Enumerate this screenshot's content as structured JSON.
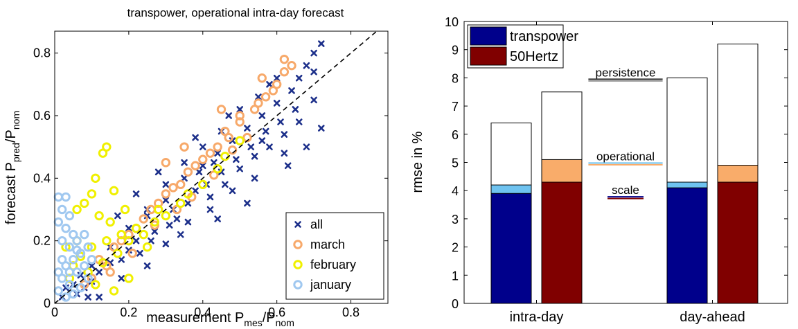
{
  "chart_data": [
    {
      "type": "scatter",
      "title": "transpower, operational intra-day forecast",
      "xlabel": {
        "main": "measurement P",
        "sub1": "mes",
        "sep": "/P",
        "sub2": "nom"
      },
      "ylabel": {
        "main": "forecast P",
        "sub1": "pred",
        "sep": "/P",
        "sub2": "nom"
      },
      "xlim": [
        0,
        0.9
      ],
      "ylim": [
        0,
        0.87
      ],
      "xticks": [
        0,
        0.2,
        0.4,
        0.6,
        0.8
      ],
      "yticks": [
        0,
        0.2,
        0.4,
        0.6,
        0.8
      ],
      "xtick_labels": [
        "0",
        "0.2",
        "0.4",
        "0.6",
        "0.8"
      ],
      "ytick_labels": [
        "0",
        "0.2",
        "0.4",
        "0.6",
        "0.8"
      ],
      "diagonal": [
        [
          0,
          0
        ],
        [
          0.9,
          0.9
        ]
      ],
      "legend_position": "bottom-right",
      "series": [
        {
          "name": "all",
          "marker": "x",
          "color": "#1c2f8a",
          "points": [
            [
              0.02,
              0.02
            ],
            [
              0.05,
              0.06
            ],
            [
              0.08,
              0.05
            ],
            [
              0.1,
              0.12
            ],
            [
              0.12,
              0.1
            ],
            [
              0.15,
              0.18
            ],
            [
              0.18,
              0.14
            ],
            [
              0.2,
              0.24
            ],
            [
              0.22,
              0.2
            ],
            [
              0.25,
              0.28
            ],
            [
              0.27,
              0.23
            ],
            [
              0.3,
              0.33
            ],
            [
              0.32,
              0.3
            ],
            [
              0.33,
              0.27
            ],
            [
              0.35,
              0.4
            ],
            [
              0.36,
              0.32
            ],
            [
              0.38,
              0.36
            ],
            [
              0.4,
              0.44
            ],
            [
              0.41,
              0.38
            ],
            [
              0.42,
              0.34
            ],
            [
              0.44,
              0.48
            ],
            [
              0.45,
              0.42
            ],
            [
              0.46,
              0.38
            ],
            [
              0.48,
              0.52
            ],
            [
              0.49,
              0.46
            ],
            [
              0.5,
              0.43
            ],
            [
              0.52,
              0.56
            ],
            [
              0.53,
              0.5
            ],
            [
              0.54,
              0.47
            ],
            [
              0.56,
              0.6
            ],
            [
              0.57,
              0.55
            ],
            [
              0.58,
              0.5
            ],
            [
              0.6,
              0.64
            ],
            [
              0.61,
              0.58
            ],
            [
              0.62,
              0.54
            ],
            [
              0.64,
              0.68
            ],
            [
              0.65,
              0.62
            ],
            [
              0.66,
              0.72
            ],
            [
              0.68,
              0.76
            ],
            [
              0.7,
              0.8
            ],
            [
              0.72,
              0.83
            ],
            [
              0.7,
              0.74
            ],
            [
              0.6,
              0.72
            ],
            [
              0.55,
              0.66
            ],
            [
              0.5,
              0.62
            ],
            [
              0.45,
              0.55
            ],
            [
              0.4,
              0.5
            ],
            [
              0.35,
              0.45
            ],
            [
              0.3,
              0.38
            ],
            [
              0.25,
              0.3
            ],
            [
              0.2,
              0.17
            ],
            [
              0.15,
              0.13
            ],
            [
              0.1,
              0.07
            ],
            [
              0.06,
              0.03
            ],
            [
              0.12,
              0.02
            ],
            [
              0.25,
              0.12
            ],
            [
              0.3,
              0.19
            ],
            [
              0.36,
              0.26
            ],
            [
              0.42,
              0.3
            ],
            [
              0.48,
              0.36
            ],
            [
              0.54,
              0.4
            ],
            [
              0.63,
              0.44
            ],
            [
              0.68,
              0.5
            ],
            [
              0.72,
              0.56
            ],
            [
              0.7,
              0.65
            ],
            [
              0.58,
              0.7
            ],
            [
              0.47,
              0.6
            ],
            [
              0.38,
              0.53
            ],
            [
              0.28,
              0.42
            ],
            [
              0.22,
              0.35
            ],
            [
              0.17,
              0.28
            ],
            [
              0.18,
              0.08
            ],
            [
              0.23,
              0.16
            ],
            [
              0.34,
              0.22
            ],
            [
              0.44,
              0.27
            ],
            [
              0.52,
              0.32
            ],
            [
              0.62,
              0.48
            ],
            [
              0.66,
              0.58
            ],
            [
              0.56,
              0.52
            ],
            [
              0.43,
              0.45
            ],
            [
              0.39,
              0.42
            ],
            [
              0.31,
              0.25
            ],
            [
              0.26,
              0.2
            ],
            [
              0.07,
              0.09
            ],
            [
              0.03,
              0.05
            ],
            [
              0.09,
              0.02
            ]
          ]
        },
        {
          "name": "march",
          "marker": "o",
          "color": "#f7a96a",
          "points": [
            [
              0.62,
              0.78
            ],
            [
              0.64,
              0.76
            ],
            [
              0.6,
              0.7
            ],
            [
              0.57,
              0.66
            ],
            [
              0.54,
              0.62
            ],
            [
              0.5,
              0.58
            ],
            [
              0.47,
              0.53
            ],
            [
              0.44,
              0.5
            ],
            [
              0.4,
              0.46
            ],
            [
              0.36,
              0.42
            ],
            [
              0.32,
              0.37
            ],
            [
              0.28,
              0.32
            ],
            [
              0.24,
              0.27
            ],
            [
              0.2,
              0.22
            ],
            [
              0.16,
              0.18
            ],
            [
              0.12,
              0.14
            ],
            [
              0.1,
              0.08
            ],
            [
              0.14,
              0.12
            ],
            [
              0.18,
              0.2
            ],
            [
              0.22,
              0.24
            ],
            [
              0.26,
              0.3
            ],
            [
              0.3,
              0.35
            ],
            [
              0.34,
              0.38
            ],
            [
              0.38,
              0.44
            ],
            [
              0.42,
              0.48
            ],
            [
              0.46,
              0.55
            ],
            [
              0.5,
              0.6
            ],
            [
              0.55,
              0.64
            ],
            [
              0.59,
              0.68
            ],
            [
              0.52,
              0.53
            ],
            [
              0.48,
              0.49
            ],
            [
              0.43,
              0.41
            ],
            [
              0.37,
              0.34
            ],
            [
              0.33,
              0.3
            ],
            [
              0.27,
              0.25
            ],
            [
              0.21,
              0.16
            ],
            [
              0.15,
              0.1
            ],
            [
              0.08,
              0.06
            ],
            [
              0.3,
              0.45
            ],
            [
              0.35,
              0.5
            ],
            [
              0.45,
              0.62
            ],
            [
              0.56,
              0.72
            ],
            [
              0.62,
              0.74
            ]
          ]
        },
        {
          "name": "february",
          "marker": "o",
          "color": "#f0f000",
          "points": [
            [
              0.14,
              0.5
            ],
            [
              0.13,
              0.48
            ],
            [
              0.11,
              0.4
            ],
            [
              0.16,
              0.36
            ],
            [
              0.1,
              0.35
            ],
            [
              0.08,
              0.32
            ],
            [
              0.06,
              0.3
            ],
            [
              0.12,
              0.28
            ],
            [
              0.15,
              0.26
            ],
            [
              0.19,
              0.3
            ],
            [
              0.22,
              0.24
            ],
            [
              0.18,
              0.22
            ],
            [
              0.14,
              0.2
            ],
            [
              0.1,
              0.18
            ],
            [
              0.07,
              0.15
            ],
            [
              0.05,
              0.12
            ],
            [
              0.04,
              0.08
            ],
            [
              0.09,
              0.1
            ],
            [
              0.13,
              0.13
            ],
            [
              0.17,
              0.16
            ],
            [
              0.2,
              0.2
            ],
            [
              0.24,
              0.22
            ],
            [
              0.27,
              0.26
            ],
            [
              0.3,
              0.28
            ],
            [
              0.34,
              0.32
            ],
            [
              0.36,
              0.35
            ],
            [
              0.4,
              0.38
            ],
            [
              0.44,
              0.43
            ],
            [
              0.46,
              0.47
            ],
            [
              0.5,
              0.52
            ],
            [
              0.16,
              0.04
            ],
            [
              0.2,
              0.08
            ],
            [
              0.11,
              0.06
            ],
            [
              0.06,
              0.2
            ],
            [
              0.03,
              0.18
            ],
            [
              0.25,
              0.18
            ],
            [
              0.28,
              0.3
            ]
          ]
        },
        {
          "name": "january",
          "marker": "o",
          "color": "#a0c8f0",
          "points": [
            [
              0.01,
              0.34
            ],
            [
              0.03,
              0.34
            ],
            [
              0.02,
              0.3
            ],
            [
              0.04,
              0.28
            ],
            [
              0.01,
              0.26
            ],
            [
              0.03,
              0.24
            ],
            [
              0.05,
              0.22
            ],
            [
              0.02,
              0.2
            ],
            [
              0.04,
              0.18
            ],
            [
              0.06,
              0.2
            ],
            [
              0.08,
              0.22
            ],
            [
              0.07,
              0.16
            ],
            [
              0.05,
              0.14
            ],
            [
              0.03,
              0.12
            ],
            [
              0.01,
              0.1
            ],
            [
              0.02,
              0.08
            ],
            [
              0.04,
              0.06
            ],
            [
              0.06,
              0.1
            ],
            [
              0.08,
              0.12
            ],
            [
              0.1,
              0.14
            ],
            [
              0.09,
              0.08
            ],
            [
              0.07,
              0.05
            ],
            [
              0.05,
              0.03
            ],
            [
              0.03,
              0.02
            ],
            [
              0.01,
              0.04
            ],
            [
              0.02,
              0.14
            ],
            [
              0.04,
              0.1
            ],
            [
              0.09,
              0.18
            ],
            [
              0.06,
              0.17
            ]
          ]
        }
      ]
    },
    {
      "type": "bar",
      "ylabel": "rmse in %",
      "ylim": [
        0,
        10
      ],
      "yticks": [
        0,
        1,
        2,
        3,
        4,
        5,
        6,
        7,
        8,
        9,
        10
      ],
      "ytick_labels": [
        "0",
        "1",
        "2",
        "3",
        "4",
        "5",
        "6",
        "7",
        "8",
        "9",
        "10"
      ],
      "categories": [
        "intra-day",
        "day-ahead"
      ],
      "legend_position": "top-left",
      "legend": [
        {
          "name": "transpower",
          "color": "#00008b"
        },
        {
          "name": "50Hertz",
          "color": "#800000"
        }
      ],
      "bars": [
        {
          "group": 0,
          "series": "transpower",
          "scale": 3.9,
          "operational": 4.2,
          "persistence": 6.4
        },
        {
          "group": 0,
          "series": "50Hertz",
          "scale": 4.3,
          "operational": 5.1,
          "persistence": 7.5
        },
        {
          "group": 1,
          "series": "transpower",
          "scale": 4.1,
          "operational": 4.3,
          "persistence": 8.0
        },
        {
          "group": 1,
          "series": "50Hertz",
          "scale": 4.3,
          "operational": 4.9,
          "persistence": 9.2
        }
      ],
      "operational_colors": {
        "transpower": "#6fc3f0",
        "50Hertz": "#f9ac6a"
      },
      "persistence_color": "#ffffff",
      "annotations": [
        {
          "text": "persistence",
          "y": 7.95,
          "line_colors": [
            "#333333",
            "#999999"
          ]
        },
        {
          "text": "operational",
          "y": 4.98,
          "line_colors": [
            "#6fc3f0",
            "#f9ac6a"
          ]
        },
        {
          "text": "scale",
          "y": 3.78,
          "line_colors": [
            "#00008b",
            "#800000"
          ]
        }
      ]
    }
  ]
}
